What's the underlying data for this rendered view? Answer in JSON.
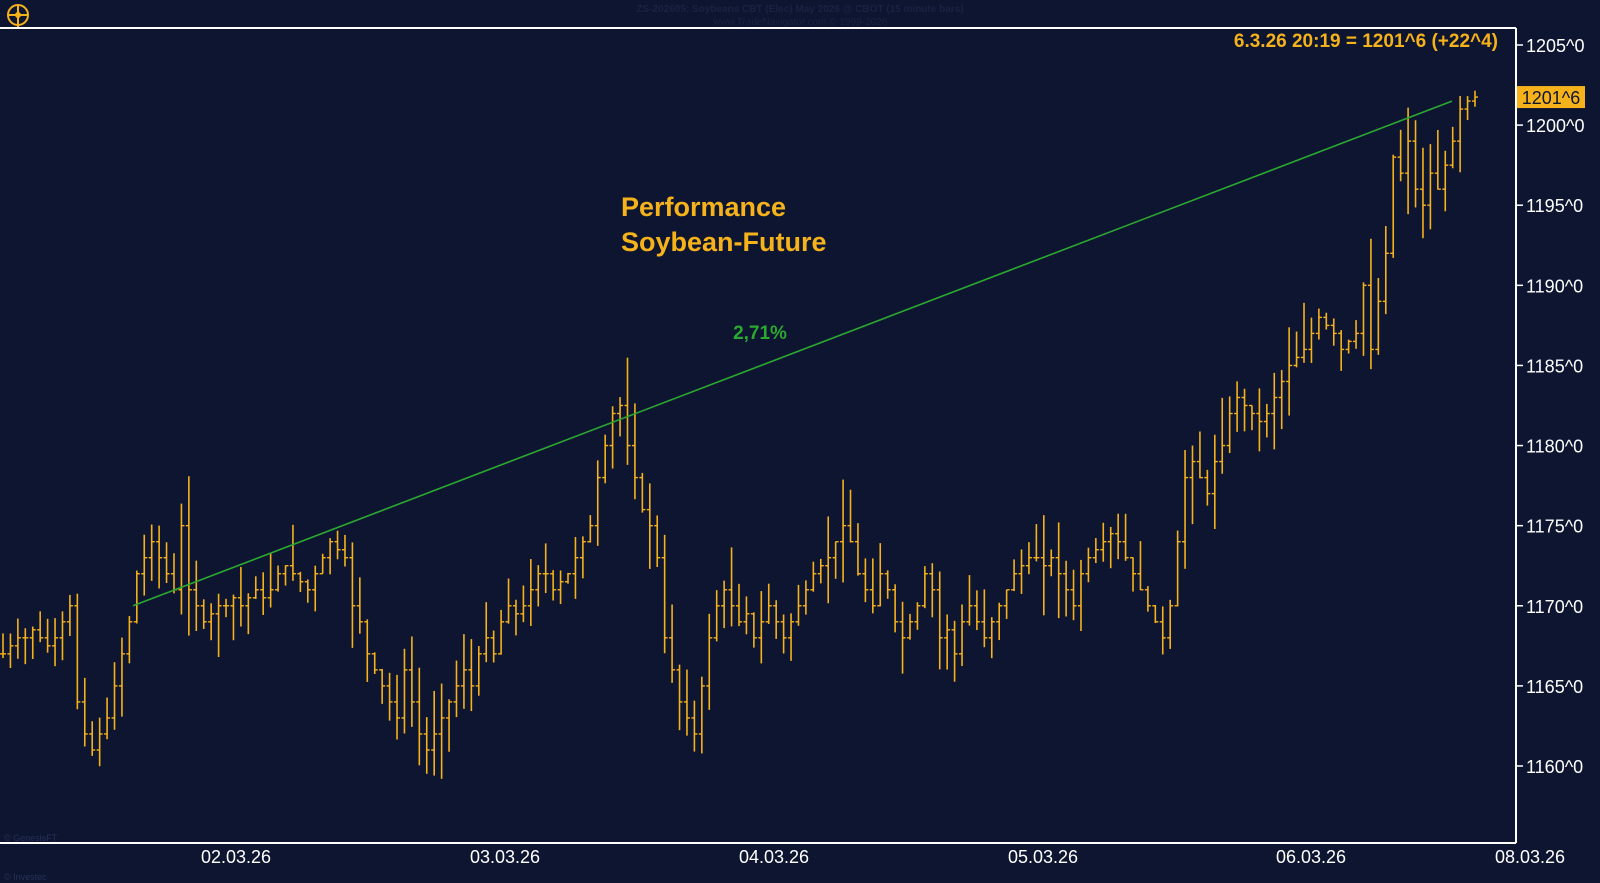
{
  "header": {
    "title_line": "ZS-202605: Soybeans CBT (Elec) May 2026 @ CBOT (15 minute bars)",
    "subtitle_line": "www.TradeNavigator.com © 1999-2026"
  },
  "watermark": {
    "bottom_left": "© GenesisFT",
    "corner": "© Investec"
  },
  "colors": {
    "background": "#0e1530",
    "bars": "#f5b21b",
    "trendline": "#2aa830",
    "text_accent": "#f5b21b",
    "axis": "#ffffff"
  },
  "chart_data": {
    "type": "ohlc-bar",
    "title": "Performance\nSoybean-Future",
    "title_lines": [
      "Performance",
      "Soybean-Future"
    ],
    "instrument": "Soybean-Future May 2026",
    "timeframe": "15 minute bars",
    "last_price_readout": "6.3.26 20:19 = 1201^6 (+22^4)",
    "last_price_label": "1201^6",
    "last_price": 1201.75,
    "ylim": [
      1155,
      1207
    ],
    "y_ticks": [
      1160,
      1165,
      1170,
      1175,
      1180,
      1185,
      1190,
      1195,
      1200,
      1205
    ],
    "y_tick_labels": [
      "1160^0",
      "1165^0",
      "1170^0",
      "1175^0",
      "1180^0",
      "1185^0",
      "1190^0",
      "1195^0",
      "1200^0",
      "1205^0"
    ],
    "x_tick_labels": [
      "02.03.26",
      "03.03.26",
      "04.03.26",
      "05.03.26",
      "06.03.26",
      "08.03.26"
    ],
    "x_label": "",
    "y_label": "",
    "grid": false,
    "trendline": {
      "from_price": 1170,
      "to_price": 1201.5,
      "label": "2,71%"
    },
    "series_closes": [
      1167,
      1167.5,
      1168,
      1168,
      1168.5,
      1168,
      1167.5,
      1168,
      1169,
      1170,
      1164,
      1162,
      1161,
      1162,
      1163,
      1165,
      1167,
      1169,
      1172,
      1173,
      1174,
      1173,
      1172,
      1171,
      1175,
      1171,
      1170,
      1169,
      1169.5,
      1170,
      1170,
      1170.5,
      1170,
      1170.5,
      1171,
      1170.5,
      1171,
      1172,
      1172.5,
      1172,
      1171.5,
      1171,
      1172,
      1173,
      1174,
      1173.5,
      1173,
      1170,
      1169,
      1167,
      1166,
      1165,
      1164,
      1163,
      1166,
      1164,
      1162,
      1161,
      1162,
      1163,
      1164,
      1165,
      1166,
      1165,
      1167,
      1168,
      1167,
      1169,
      1170,
      1169.5,
      1170,
      1171,
      1172,
      1172,
      1171,
      1171.5,
      1172,
      1173,
      1174,
      1175,
      1178,
      1180,
      1182,
      1182.5,
      1180,
      1178,
      1176,
      1175,
      1173,
      1168,
      1166,
      1164,
      1163,
      1162,
      1165,
      1168,
      1170,
      1171,
      1170,
      1169,
      1169.5,
      1168,
      1169,
      1170,
      1169,
      1168,
      1169,
      1170,
      1171,
      1172,
      1172.5,
      1173,
      1174,
      1175,
      1174,
      1172,
      1171,
      1170,
      1172,
      1171,
      1169,
      1168,
      1169,
      1170,
      1172,
      1171,
      1168,
      1168.5,
      1167,
      1169,
      1170,
      1169,
      1168,
      1169,
      1170,
      1171,
      1172,
      1172.5,
      1173,
      1173,
      1172.5,
      1173,
      1172,
      1171,
      1170,
      1172,
      1173,
      1173.5,
      1174,
      1174.5,
      1174,
      1173,
      1172,
      1171,
      1170,
      1169,
      1168,
      1170,
      1174,
      1178,
      1179,
      1178,
      1177,
      1179,
      1180,
      1182,
      1183,
      1182.5,
      1182,
      1181.5,
      1182,
      1183,
      1184,
      1185,
      1185.5,
      1186,
      1187,
      1188,
      1187.5,
      1187,
      1186,
      1186.5,
      1187,
      1190,
      1186,
      1189,
      1192,
      1198,
      1197,
      1199,
      1196,
      1195,
      1197,
      1196,
      1197.5,
      1199,
      1201,
      1201.5,
      1201.75
    ]
  }
}
